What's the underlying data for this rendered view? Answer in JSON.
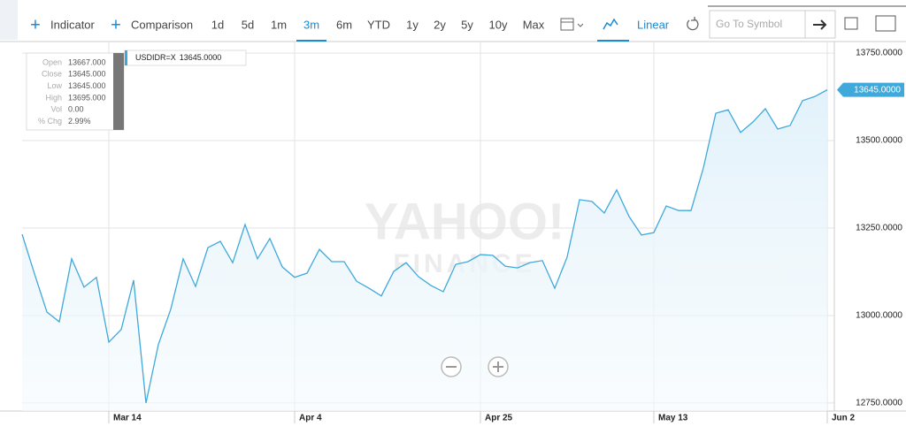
{
  "toolbar": {
    "indicator": "Indicator",
    "comparison": "Comparison",
    "ranges": [
      "1d",
      "5d",
      "1m",
      "3m",
      "6m",
      "YTD",
      "1y",
      "2y",
      "5y",
      "10y",
      "Max"
    ],
    "active_range": "3m",
    "scale": "Linear",
    "search_placeholder": "Go To Symbol"
  },
  "tooltip": {
    "rows": [
      {
        "label": "Open",
        "value": "13667.000"
      },
      {
        "label": "Close",
        "value": "13645.000"
      },
      {
        "label": "Low",
        "value": "13645.000"
      },
      {
        "label": "High",
        "value": "13695.000"
      },
      {
        "label": "Vol",
        "value": "0.00"
      },
      {
        "label": "% Chg",
        "value": "2.99%"
      }
    ]
  },
  "watermark": [
    "YAHOO!",
    "FINANCE"
  ],
  "chart_data": {
    "type": "line",
    "categories": [
      null,
      null,
      null,
      null,
      null,
      null,
      null,
      "Mar 14",
      null,
      null,
      null,
      null,
      null,
      null,
      null,
      null,
      null,
      null,
      null,
      null,
      null,
      null,
      "Apr 4",
      null,
      null,
      null,
      null,
      null,
      null,
      null,
      null,
      null,
      null,
      null,
      null,
      null,
      null,
      "Apr 25",
      null,
      null,
      null,
      null,
      null,
      null,
      null,
      null,
      null,
      null,
      null,
      null,
      null,
      "May 13",
      null,
      null,
      null,
      null,
      null,
      null,
      null,
      null,
      null,
      null,
      null,
      null,
      null,
      "Jun 2"
    ],
    "series": [
      {
        "name": "USDIDR=X",
        "color": "#3fa9dc",
        "values": [
          13232,
          13119,
          13010,
          12982,
          13162,
          13081,
          13109,
          12924,
          12960,
          13101,
          12750,
          12917,
          13018,
          13162,
          13083,
          13194,
          13212,
          13151,
          13260,
          13162,
          13220,
          13139,
          13109,
          13121,
          13189,
          13154,
          13154,
          13098,
          13078,
          13056,
          13126,
          13151,
          13111,
          13086,
          13068,
          13146,
          13154,
          13174,
          13172,
          13141,
          13136,
          13151,
          13157,
          13078,
          13167,
          13331,
          13326,
          13293,
          13359,
          13283,
          13230,
          13237,
          13313,
          13300,
          13300,
          13422,
          13578,
          13588,
          13523,
          13553,
          13591,
          13533,
          13543,
          13614,
          13626,
          13645
        ]
      }
    ],
    "current": {
      "value": 13645,
      "label": "13645.0000"
    },
    "ylim": [
      12727,
      13783
    ],
    "yticks": [
      {
        "value": 12750,
        "label": "12750.0000"
      },
      {
        "value": 13000,
        "label": "13000.0000"
      },
      {
        "value": 13250,
        "label": "13250.0000"
      },
      {
        "value": 13500,
        "label": "13500.0000"
      },
      {
        "value": 13750,
        "label": "13750.0000"
      }
    ],
    "grid": true
  }
}
